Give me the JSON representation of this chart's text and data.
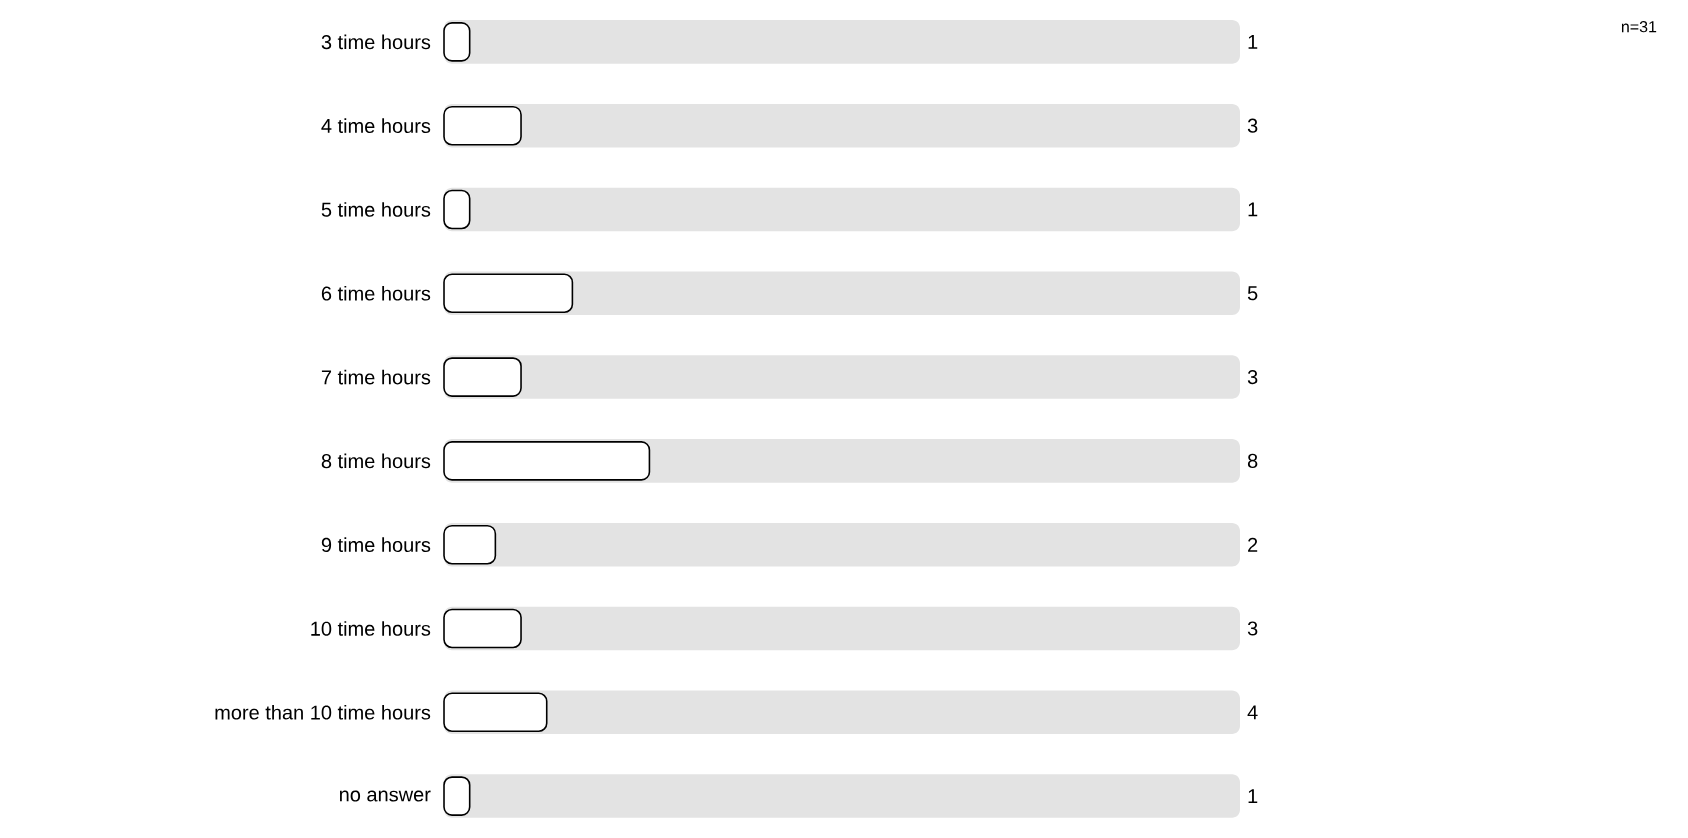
{
  "chart_data": {
    "type": "bar",
    "orientation": "horizontal",
    "categories": [
      "3 time hours",
      "4 time hours",
      "5 time hours",
      "6 time hours",
      "7 time hours",
      "8 time hours",
      "9 time hours",
      "10 time hours",
      "more than 10 time hours",
      "no answer"
    ],
    "values": [
      1,
      3,
      1,
      5,
      3,
      8,
      2,
      3,
      4,
      1
    ],
    "color": "#ffffff",
    "xlim": [
      0,
      31
    ],
    "data_labels": true,
    "annotations": [
      "n=31"
    ]
  }
}
